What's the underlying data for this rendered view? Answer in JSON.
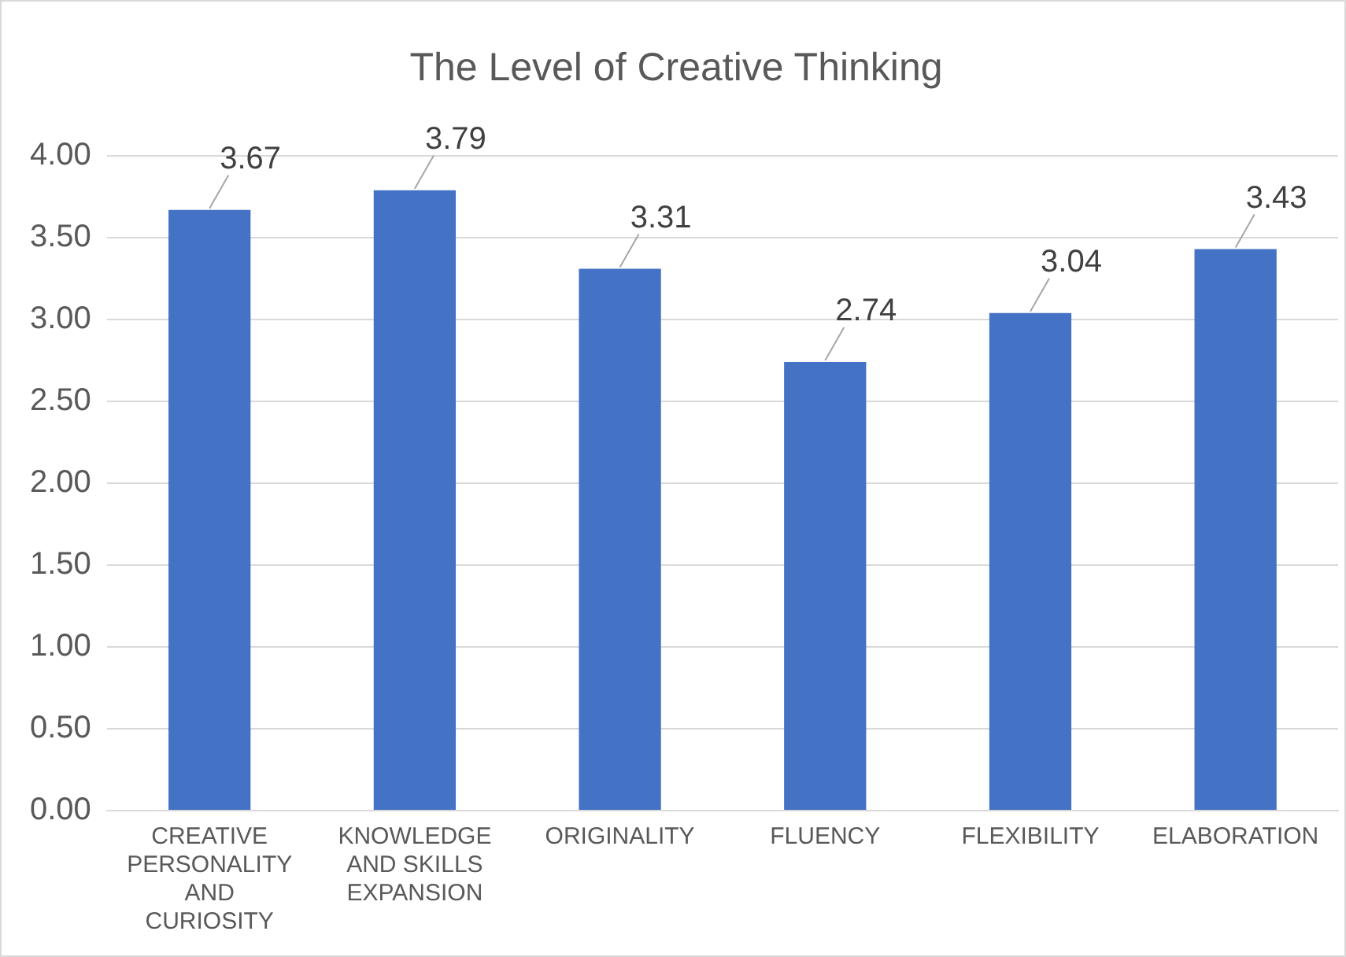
{
  "chart_data": {
    "type": "bar",
    "title": "The Level of Creative Thinking",
    "categories": [
      "CREATIVE PERSONALITY AND CURIOSITY",
      "KNOWLEDGE AND SKILLS EXPANSION",
      "ORIGINALITY",
      "FLUENCY",
      "FLEXIBILITY",
      "ELABORATION"
    ],
    "values": [
      3.67,
      3.79,
      3.31,
      2.74,
      3.04,
      3.43
    ],
    "color": "#4472c4",
    "ylim": [
      0,
      4
    ],
    "yticks": [
      {
        "value": 0,
        "label": "0.00"
      },
      {
        "value": 0.5,
        "label": "0.50"
      },
      {
        "value": 1,
        "label": "1.00"
      },
      {
        "value": 1.5,
        "label": "1.50"
      },
      {
        "value": 2,
        "label": "2.00"
      },
      {
        "value": 2.5,
        "label": "2.50"
      },
      {
        "value": 3,
        "label": "3.00"
      },
      {
        "value": 3.5,
        "label": "3.50"
      },
      {
        "value": 4,
        "label": "4.00"
      }
    ],
    "grid": "y",
    "data_labels": true
  }
}
